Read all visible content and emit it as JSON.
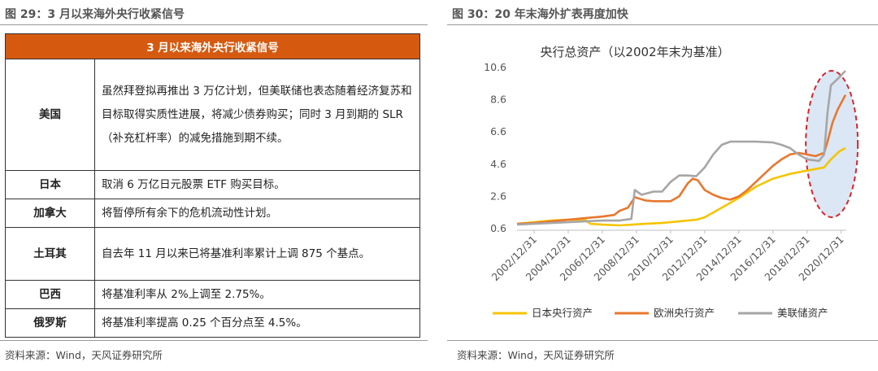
{
  "left": {
    "figure_title": "图 29：3 月以来海外央行收紧信号",
    "table": {
      "header": "3 月以来海外央行收紧信号",
      "rows": [
        {
          "country": "美国",
          "text": "虽然拜登拟再推出 3 万亿计划，但美联储也表态随着经济复苏和目标取得实质性进展，将减少债券购买；同时 3 月到期的 SLR（补充杠杆率）的减免措施到期不续。"
        },
        {
          "country": "日本",
          "text": "取消 6 万亿日元股票 ETF 购买目标。"
        },
        {
          "country": "加拿大",
          "text": "将暂停所有余下的危机流动性计划。"
        },
        {
          "country": "土耳其",
          "text": "自去年 11 月以来已将基准利率累计上调 875 个基点。"
        },
        {
          "country": "巴西",
          "text": "将基准利率从 2%上调至 2.75%。"
        },
        {
          "country": "俄罗斯",
          "text": "将基准利率提高 0.25 个百分点至 4.5%。"
        }
      ]
    },
    "source": "资料来源：Wind，天风证券研究所"
  },
  "right": {
    "figure_title": "图 30：20 年末海外扩表再度加快",
    "source": "资料来源：Wind，天风证券研究所"
  },
  "chart_data": {
    "type": "line",
    "title": "央行总资产（以2002年末为基准）",
    "ylim": [
      0.6,
      10.6
    ],
    "yticks": [
      0.6,
      2.6,
      4.6,
      6.6,
      8.6,
      10.6
    ],
    "xlim": [
      2002.0,
      2021.3
    ],
    "xticks": [
      "2002/12/31",
      "2004/12/31",
      "2006/12/31",
      "2008/12/31",
      "2010/12/31",
      "2012/12/31",
      "2014/12/31",
      "2016/12/31",
      "2018/12/31",
      "2020/12/31"
    ],
    "legend_position": "bottom",
    "annotation": "red dashed ellipse highlighting late-2020 expansion",
    "colors": {
      "japan": "#f5c400",
      "ecb": "#e8772e",
      "fed": "#a6a6a6",
      "highlight": "#d9242b",
      "highlight_fill": "#dbe7f4"
    },
    "series": [
      {
        "key": "japan",
        "name": "日本央行资产",
        "x": [
          2002.0,
          2003.0,
          2004.0,
          2005.0,
          2006.0,
          2006.3,
          2007.0,
          2008.0,
          2008.8,
          2009.5,
          2010.5,
          2011.5,
          2012.5,
          2013.0,
          2013.5,
          2014.0,
          2015.0,
          2016.0,
          2017.0,
          2018.0,
          2019.0,
          2020.0,
          2020.4,
          2020.9,
          2021.25
        ],
        "y": [
          0.9,
          1.0,
          1.1,
          1.15,
          1.15,
          0.9,
          0.85,
          0.8,
          0.85,
          0.9,
          0.95,
          1.05,
          1.15,
          1.3,
          1.6,
          1.9,
          2.5,
          3.2,
          3.7,
          4.0,
          4.2,
          4.4,
          4.9,
          5.4,
          5.6
        ]
      },
      {
        "key": "ecb",
        "name": "欧洲央行资产",
        "x": [
          2002.0,
          2003.0,
          2004.0,
          2005.0,
          2006.0,
          2007.0,
          2007.7,
          2008.0,
          2008.5,
          2008.9,
          2009.5,
          2010.0,
          2010.5,
          2011.0,
          2011.5,
          2012.0,
          2012.3,
          2012.6,
          2013.0,
          2013.5,
          2014.0,
          2014.5,
          2015.0,
          2015.5,
          2016.0,
          2016.5,
          2017.0,
          2017.5,
          2018.0,
          2018.5,
          2019.0,
          2019.5,
          2020.0,
          2020.2,
          2020.5,
          2020.8,
          2021.25
        ],
        "y": [
          0.9,
          0.95,
          1.05,
          1.15,
          1.25,
          1.35,
          1.45,
          1.7,
          1.9,
          2.55,
          2.35,
          2.3,
          2.3,
          2.3,
          2.6,
          3.4,
          3.7,
          3.6,
          3.0,
          2.7,
          2.5,
          2.4,
          2.6,
          3.0,
          3.5,
          4.0,
          4.5,
          4.9,
          5.2,
          5.3,
          5.2,
          5.1,
          5.3,
          6.0,
          7.2,
          8.0,
          8.9
        ]
      },
      {
        "key": "fed",
        "name": "美联储资产",
        "x": [
          2002.0,
          2003.0,
          2004.0,
          2005.0,
          2006.0,
          2007.0,
          2008.0,
          2008.7,
          2008.9,
          2009.3,
          2010.0,
          2010.5,
          2011.0,
          2011.5,
          2012.0,
          2012.5,
          2013.0,
          2013.5,
          2014.0,
          2014.5,
          2015.0,
          2016.0,
          2017.0,
          2017.5,
          2018.0,
          2018.5,
          2019.0,
          2019.7,
          2020.0,
          2020.2,
          2020.4,
          2020.8,
          2021.25
        ],
        "y": [
          0.85,
          0.9,
          0.95,
          1.0,
          1.05,
          1.1,
          1.1,
          1.2,
          3.0,
          2.7,
          2.9,
          2.9,
          3.5,
          3.9,
          3.9,
          3.85,
          4.4,
          5.2,
          5.8,
          6.0,
          6.0,
          6.0,
          5.95,
          5.8,
          5.6,
          5.2,
          4.9,
          4.8,
          5.2,
          7.8,
          9.5,
          9.9,
          10.4
        ]
      }
    ]
  }
}
